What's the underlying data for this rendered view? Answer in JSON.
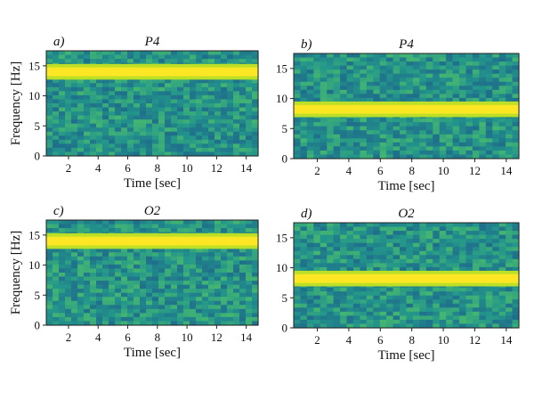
{
  "chart_data": [
    {
      "panel": "a)",
      "type": "heatmap",
      "title": "P4",
      "xlabel": "Time [sec]",
      "ylabel": "Frequency [Hz]",
      "xlim": [
        0.5,
        14.8
      ],
      "ylim": [
        0,
        17.5
      ],
      "xticks": [
        2,
        4,
        6,
        8,
        10,
        12,
        14
      ],
      "yticks": [
        0,
        5,
        10,
        15
      ],
      "band": {
        "frequency_hz": 14.0,
        "width_hz": 2.6
      }
    },
    {
      "panel": "b)",
      "type": "heatmap",
      "title": "P4",
      "xlabel": "Time [sec]",
      "ylabel": "",
      "xlim": [
        0.5,
        14.8
      ],
      "ylim": [
        0,
        17.5
      ],
      "xticks": [
        2,
        4,
        6,
        8,
        10,
        12,
        14
      ],
      "yticks": [
        0,
        5,
        10,
        15
      ],
      "band": {
        "frequency_hz": 8.2,
        "width_hz": 2.6
      }
    },
    {
      "panel": "c)",
      "type": "heatmap",
      "title": "O2",
      "xlabel": "Time [sec]",
      "ylabel": "Frequency [Hz]",
      "xlim": [
        0.5,
        14.8
      ],
      "ylim": [
        0,
        17.5
      ],
      "xticks": [
        2,
        4,
        6,
        8,
        10,
        12,
        14
      ],
      "yticks": [
        0,
        5,
        10,
        15
      ],
      "band": {
        "frequency_hz": 14.0,
        "width_hz": 2.6
      }
    },
    {
      "panel": "d)",
      "type": "heatmap",
      "title": "O2",
      "xlabel": "Time [sec]",
      "ylabel": "",
      "xlim": [
        0.5,
        14.8
      ],
      "ylim": [
        0,
        17.5
      ],
      "xticks": [
        2,
        4,
        6,
        8,
        10,
        12,
        14
      ],
      "yticks": [
        0,
        5,
        10,
        15
      ],
      "band": {
        "frequency_hz": 8.2,
        "width_hz": 2.6
      }
    }
  ],
  "colors": {
    "background_low": "#1f6f8b",
    "background_mid": "#23958b",
    "background_high": "#4cbd6b",
    "band_edge": "#bddf26",
    "band_core": "#fde725"
  }
}
